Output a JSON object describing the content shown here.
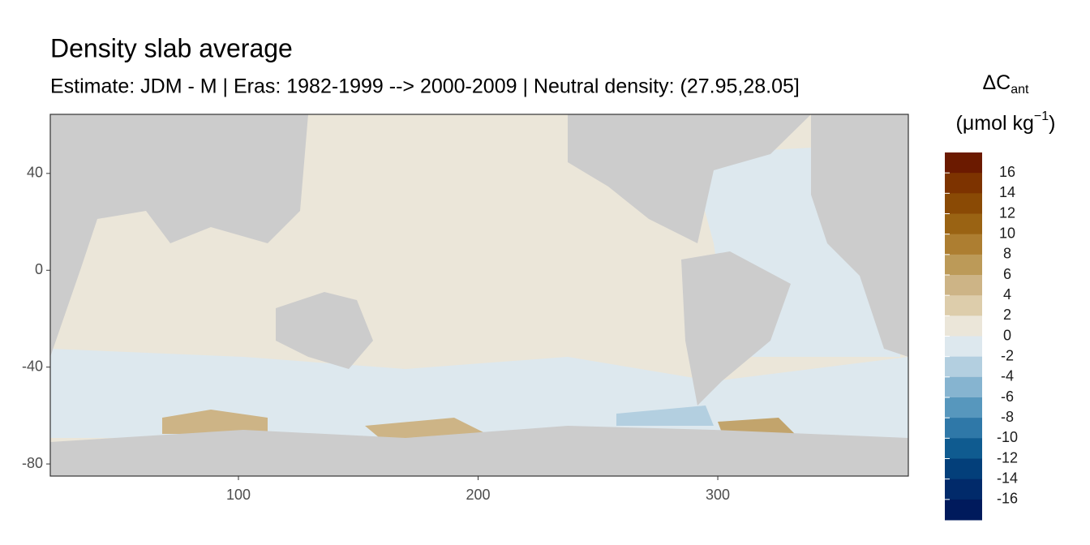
{
  "chart_data": {
    "type": "raster-map",
    "title": "Density slab average",
    "subtitle": "Estimate: JDM - M | Eras: 1982-1999 --> 2000-2009 | Neutral density: (27.95,28.05]",
    "xlim": [
      21.5,
      379.5
    ],
    "xticks": [
      100,
      200,
      300
    ],
    "ylim": [
      -85,
      64.4
    ],
    "yticks": [
      40,
      0,
      -40,
      -80
    ],
    "land_color": "#cccccc",
    "legend": {
      "title": "ΔC",
      "title_sub": "ant",
      "unit_prefix": "(μmol kg",
      "unit_sup": "−1",
      "unit_suffix": ")",
      "limits": [
        -18,
        18
      ],
      "ticks": [
        16,
        14,
        12,
        10,
        8,
        6,
        4,
        2,
        0,
        -2,
        -4,
        -6,
        -8,
        -10,
        -12,
        -14,
        -16
      ],
      "colors": [
        "#6b1a00",
        "#7d3300",
        "#8a4a05",
        "#9a6313",
        "#ad7e31",
        "#bc9a58",
        "#cdb486",
        "#ddcdab",
        "#ebe6d9",
        "#dde8ee",
        "#b3cfe0",
        "#86b4d0",
        "#5797bd",
        "#2f78a8",
        "#0f5b90",
        "#033f7a",
        "#012a6a",
        "#001a5c"
      ]
    }
  }
}
